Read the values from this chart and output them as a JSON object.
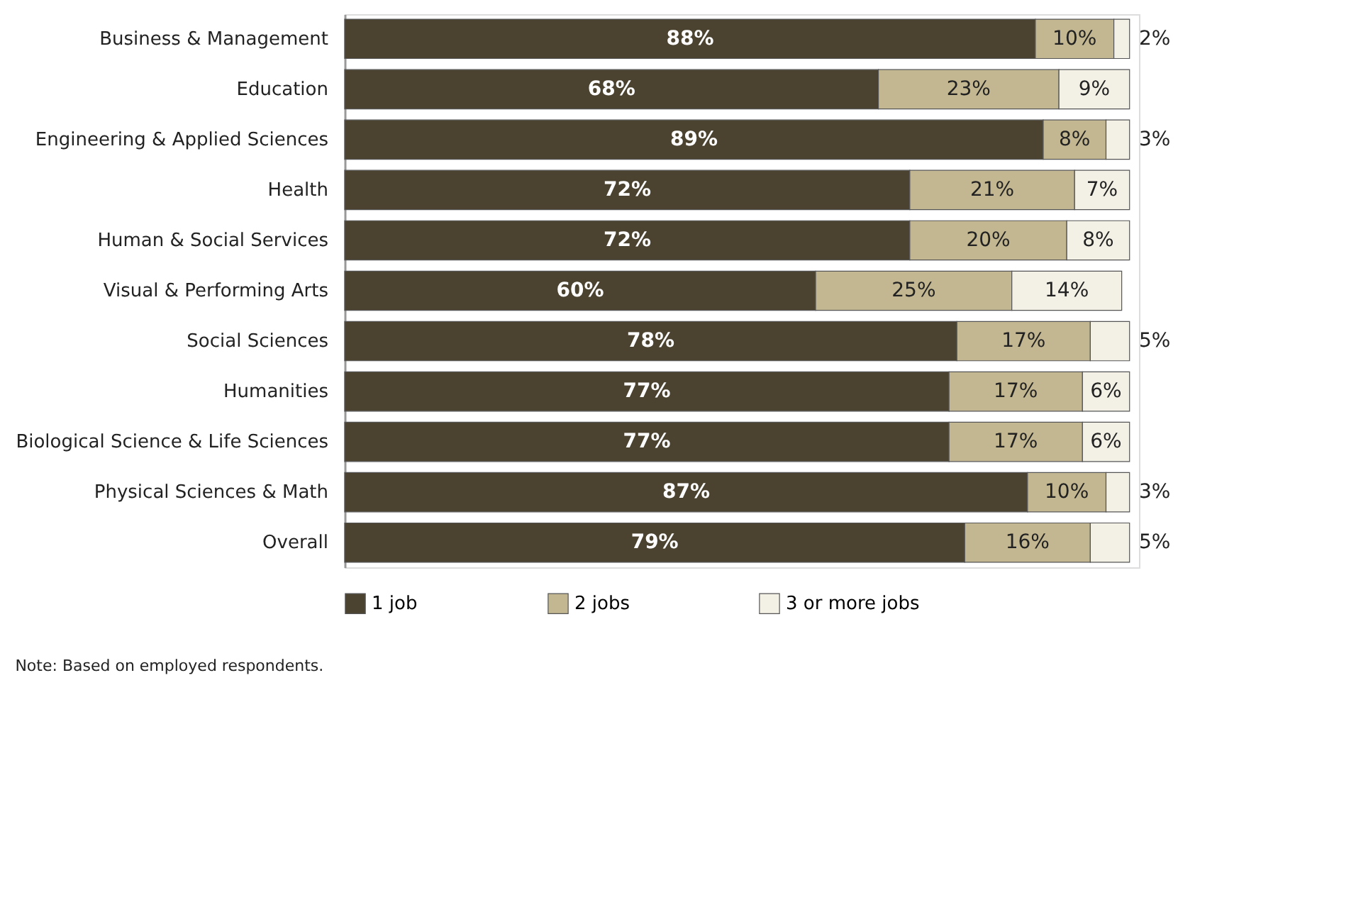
{
  "chart_data": {
    "type": "bar",
    "orientation": "horizontal",
    "stacked": true,
    "legend": "bottom",
    "grid": false,
    "categories": [
      "Business & Management",
      "Education",
      "Engineering & Applied Sciences",
      "Health",
      "Human & Social Services",
      "Visual & Performing Arts",
      "Social Sciences",
      "Humanities",
      "Biological Science & Life Sciences",
      "Physical Sciences & Math",
      "Overall"
    ],
    "series": [
      {
        "name": "1 job",
        "color": "#4b4330",
        "values": [
          88,
          68,
          89,
          72,
          72,
          60,
          78,
          77,
          77,
          87,
          79
        ],
        "value_labels": [
          "88%",
          "68%",
          "89%",
          "72%",
          "72%",
          "60%",
          "78%",
          "77%",
          "77%",
          "87%",
          "79%"
        ]
      },
      {
        "name": "2 jobs",
        "color": "#c3b791",
        "values": [
          10,
          23,
          8,
          21,
          20,
          25,
          17,
          17,
          17,
          10,
          16
        ],
        "value_labels": [
          "10%",
          "23%",
          "8%",
          "21%",
          "20%",
          "25%",
          "17%",
          "17%",
          "17%",
          "10%",
          "16%"
        ]
      },
      {
        "name": "3 or more jobs",
        "color": "#f3f0e6",
        "values": [
          2,
          9,
          3,
          7,
          8,
          14,
          5,
          6,
          6,
          3,
          5
        ],
        "value_labels": [
          "2%",
          "9%",
          "3%",
          "7%",
          "8%",
          "14%",
          "5%",
          "6%",
          "6%",
          "3%",
          "5%"
        ]
      }
    ],
    "annotations": [
      "Note: Based on employed respondents."
    ]
  }
}
